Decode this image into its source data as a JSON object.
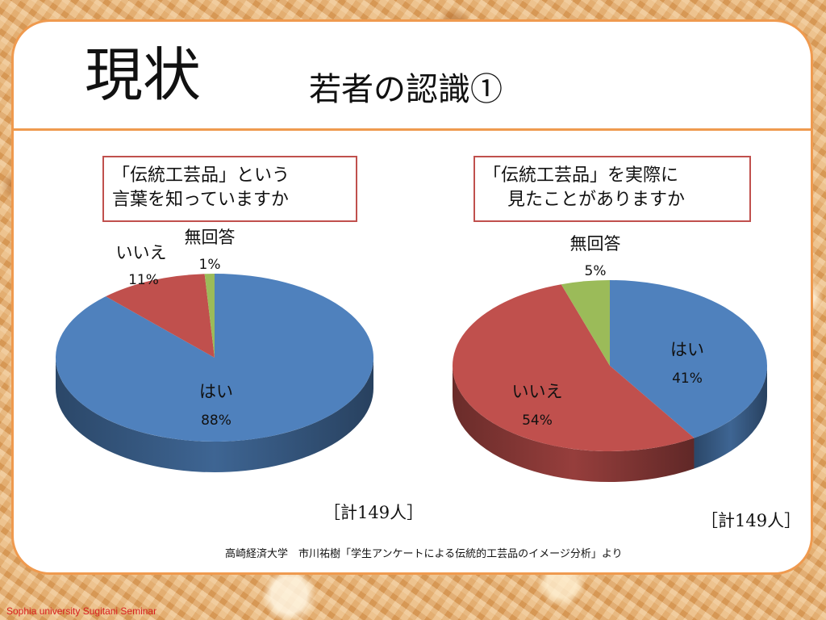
{
  "slide": {
    "title": "現状",
    "subtitle": "若者の認識①",
    "footer": "Sophia university Sugitani Seminar",
    "source": "高崎経済大学　市川祐樹「学生アンケートによる伝統的工芸品のイメージ分析」より",
    "colors": {
      "frame": "#ef9a4f",
      "box_border": "#c0504d"
    }
  },
  "chart_data": [
    {
      "type": "pie",
      "title": [
        "「伝統工芸品」という",
        "言葉を知っていますか"
      ],
      "total_label": "［計149人］",
      "slices": [
        {
          "name": "はい",
          "label": "88%",
          "value": 88,
          "color": "#4f81bd"
        },
        {
          "name": "いいえ",
          "label": "11%",
          "value": 11,
          "color": "#c0504d"
        },
        {
          "name": "無回答",
          "label": "1%",
          "value": 1,
          "color": "#9bbb59"
        }
      ]
    },
    {
      "type": "pie",
      "title": [
        "「伝統工芸品」を実際に",
        "見たことがありますか"
      ],
      "total_label": "［計149人］",
      "slices": [
        {
          "name": "はい",
          "label": "41%",
          "value": 41,
          "color": "#4f81bd"
        },
        {
          "name": "いいえ",
          "label": "54%",
          "value": 54,
          "color": "#c0504d"
        },
        {
          "name": "無回答",
          "label": "5%",
          "value": 5,
          "color": "#9bbb59"
        }
      ]
    }
  ]
}
